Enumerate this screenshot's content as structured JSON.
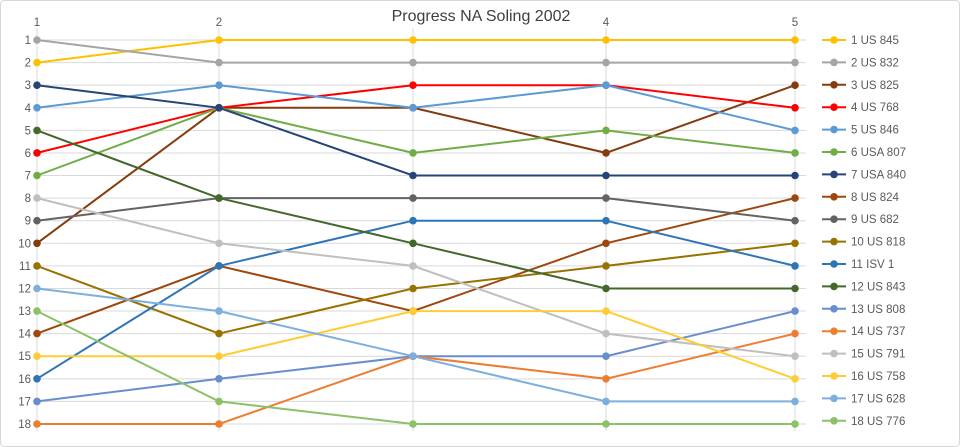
{
  "window_title": "Progress NA Soling 2002",
  "chart_data": {
    "type": "line",
    "subtype": "bump-rank-progression",
    "title": "Progress NA Soling 2002",
    "title_color": "#3f3f3f",
    "axis_text_color": "#595959",
    "gridline_color": "#d9d9d9",
    "border_color": "#d6d6d6",
    "background_color": "#ffffff",
    "x_labels": [
      "1",
      "2",
      "3",
      "4",
      "5"
    ],
    "x_axis_position": "top",
    "y_ticks": [
      "1",
      "2",
      "3",
      "4",
      "5",
      "6",
      "7",
      "8",
      "9",
      "10",
      "11",
      "12",
      "13",
      "14",
      "15",
      "16",
      "17",
      "18"
    ],
    "y_axis_inverted": true,
    "ylim": [
      1,
      18
    ],
    "grid": true,
    "legend_position": "right",
    "series": [
      {
        "name": "1 US 845",
        "color": "#FFC000",
        "values": [
          2,
          1,
          1,
          1,
          1
        ]
      },
      {
        "name": "2 US 832",
        "color": "#A5A5A5",
        "values": [
          1,
          2,
          2,
          2,
          2
        ]
      },
      {
        "name": "3 US 825",
        "color": "#843C0C",
        "values": [
          10,
          4,
          4,
          6,
          3
        ]
      },
      {
        "name": "4 US 768",
        "color": "#FF0000",
        "values": [
          6,
          4,
          3,
          3,
          4
        ]
      },
      {
        "name": "5 US 846",
        "color": "#5B9BD5",
        "values": [
          4,
          3,
          4,
          3,
          5
        ]
      },
      {
        "name": "6 USA 807",
        "color": "#70AD47",
        "values": [
          7,
          4,
          6,
          5,
          6
        ]
      },
      {
        "name": "7 USA 840",
        "color": "#264478",
        "values": [
          3,
          4,
          7,
          7,
          7
        ]
      },
      {
        "name": "8 US 824",
        "color": "#9E480E",
        "values": [
          14,
          11,
          13,
          10,
          8
        ]
      },
      {
        "name": "9 US 682",
        "color": "#636363",
        "values": [
          9,
          8,
          8,
          8,
          9
        ]
      },
      {
        "name": "10 US 818",
        "color": "#997300",
        "values": [
          11,
          14,
          12,
          11,
          10
        ]
      },
      {
        "name": "11 ISV 1",
        "color": "#2E75B6",
        "values": [
          16,
          11,
          9,
          9,
          11
        ]
      },
      {
        "name": "12 US 843",
        "color": "#43682B",
        "values": [
          5,
          8,
          10,
          12,
          12
        ]
      },
      {
        "name": "13 US 808",
        "color": "#698ED0",
        "values": [
          17,
          16,
          15,
          15,
          13
        ]
      },
      {
        "name": "14 US 737",
        "color": "#ED7D31",
        "values": [
          18,
          18,
          15,
          16,
          14
        ]
      },
      {
        "name": "15 US 791",
        "color": "#BFBFBF",
        "values": [
          8,
          10,
          11,
          14,
          15
        ]
      },
      {
        "name": "16 US 758",
        "color": "#FFCD33",
        "values": [
          15,
          15,
          13,
          13,
          16
        ]
      },
      {
        "name": "17 US 628",
        "color": "#7CAFDD",
        "values": [
          12,
          13,
          15,
          17,
          17
        ]
      },
      {
        "name": "18 US 776",
        "color": "#8CC168",
        "values": [
          13,
          17,
          18,
          18,
          18
        ]
      }
    ]
  }
}
